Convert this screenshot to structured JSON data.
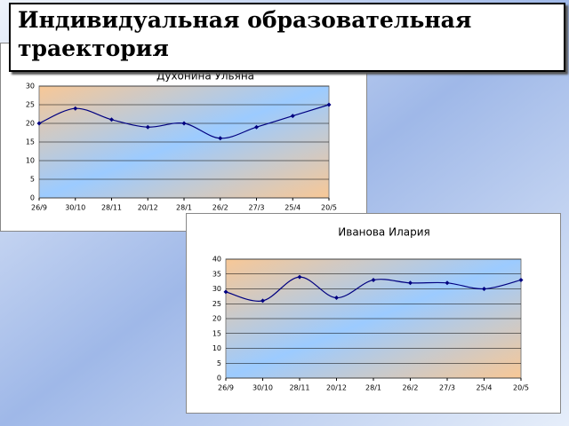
{
  "title": "Индивидуальная образовательная траектория",
  "chart_data": [
    {
      "type": "line",
      "title": "Духонина Ульяна",
      "categories": [
        "26/9",
        "30/10",
        "28/11",
        "20/12",
        "28/1",
        "26/2",
        "27/3",
        "25/4",
        "20/5"
      ],
      "values": [
        20,
        24,
        21,
        19,
        20,
        16,
        19,
        22,
        25
      ],
      "color": "#000080",
      "ylim": [
        0,
        30
      ],
      "yticks": [
        0,
        5,
        10,
        15,
        20,
        25,
        30
      ],
      "grid": true,
      "smooth": true
    },
    {
      "type": "line",
      "title": "Иванова Илария",
      "categories": [
        "26/9",
        "30/10",
        "28/11",
        "20/12",
        "28/1",
        "26/2",
        "27/3",
        "25/4",
        "20/5"
      ],
      "values": [
        29,
        26,
        34,
        27,
        33,
        32,
        32,
        30,
        33
      ],
      "color": "#000080",
      "ylim": [
        0,
        40
      ],
      "yticks": [
        0,
        5,
        10,
        15,
        20,
        25,
        30,
        35,
        40
      ],
      "grid": true,
      "smooth": true
    }
  ]
}
